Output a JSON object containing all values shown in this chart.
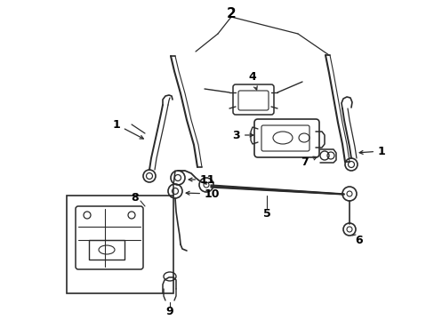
{
  "bg_color": "#ffffff",
  "line_color": "#2a2a2a",
  "label_color": "#000000",
  "figsize": [
    4.89,
    3.6
  ],
  "dpi": 100,
  "lw": 1.1
}
